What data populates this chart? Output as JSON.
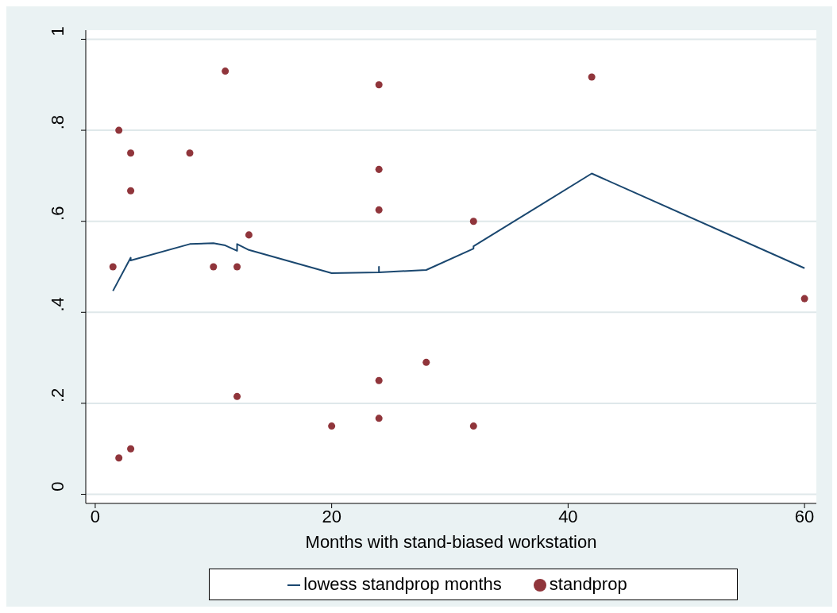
{
  "chart_data": {
    "type": "scatter",
    "xlabel": "Months with stand-biased workstation",
    "xlim": [
      -0.8,
      61
    ],
    "xticks": [
      0,
      20,
      40,
      60
    ],
    "ylim": [
      -0.02,
      1.02
    ],
    "yticks": [
      {
        "value": 0,
        "label": "0"
      },
      {
        "value": 0.2,
        "label": ".2"
      },
      {
        "value": 0.4,
        "label": ".4"
      },
      {
        "value": 0.6,
        "label": ".6"
      },
      {
        "value": 0.8,
        "label": ".8"
      },
      {
        "value": 1,
        "label": "1"
      }
    ],
    "grid": "y",
    "legend": "bottom",
    "series": [
      {
        "name": "lowess standprop months",
        "type": "line",
        "color": "#1a476f",
        "marker": "none",
        "x": [
          1.5,
          3,
          3,
          8,
          10,
          11,
          12,
          12,
          13,
          20,
          24,
          24,
          24,
          28,
          32,
          32,
          42,
          60
        ],
        "values": [
          0.447,
          0.52,
          0.514,
          0.55,
          0.552,
          0.547,
          0.535,
          0.55,
          0.537,
          0.486,
          0.488,
          0.5,
          0.488,
          0.493,
          0.54,
          0.545,
          0.705,
          0.497
        ]
      },
      {
        "name": "standprop",
        "color": "#90353b",
        "marker": "circle",
        "x": [
          1.5,
          2,
          2,
          3,
          3,
          3,
          8,
          11,
          10,
          12,
          12,
          13,
          20,
          24,
          24,
          24,
          24,
          24,
          28,
          32,
          32,
          42,
          60
        ],
        "values": [
          0.5,
          0.8,
          0.08,
          0.75,
          0.667,
          0.1,
          0.75,
          0.93,
          0.5,
          0.5,
          0.215,
          0.57,
          0.15,
          0.9,
          0.714,
          0.625,
          0.25,
          0.167,
          0.29,
          0.6,
          0.15,
          0.917,
          0.43
        ]
      }
    ]
  }
}
